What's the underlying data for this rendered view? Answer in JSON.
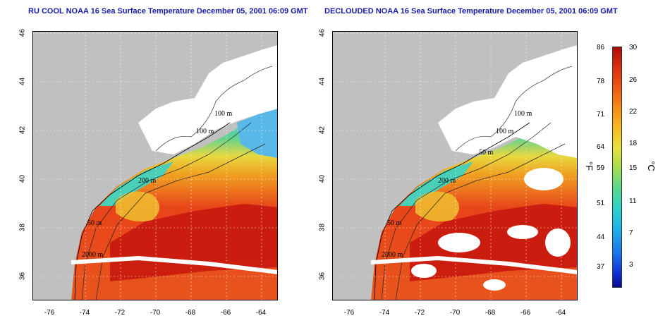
{
  "titles": {
    "left": "RU COOL NOAA 16 Sea Surface Temperature December 05, 2001 06:09 GMT",
    "right": "DECLOUDED NOAA 16 Sea Surface Temperature December 05, 2001 06:09 GMT"
  },
  "axes": {
    "lat_ticks": [
      "46",
      "44",
      "42",
      "40",
      "38",
      "36"
    ],
    "lon_ticks": [
      "-76",
      "-74",
      "-72",
      "-70",
      "-68",
      "-66",
      "-64"
    ]
  },
  "contour_labels": [
    "100 m",
    "100 m",
    "50 m",
    "200 m",
    "50 m",
    "2000 m"
  ],
  "colorbar": {
    "fahrenheit": [
      "86",
      "78",
      "71",
      "64",
      "59",
      "51",
      "44",
      "37"
    ],
    "celsius": [
      "30",
      "26",
      "22",
      "18",
      "15",
      "11",
      "7",
      "3"
    ],
    "unit_f": "°F",
    "unit_c": "°C"
  },
  "colors": {
    "land": "#c0c0c0",
    "title": "#1a1aa8",
    "warm": "#e8341a",
    "hot": "#c81810",
    "cool": "#38d0a8",
    "mid": "#f2a020"
  }
}
